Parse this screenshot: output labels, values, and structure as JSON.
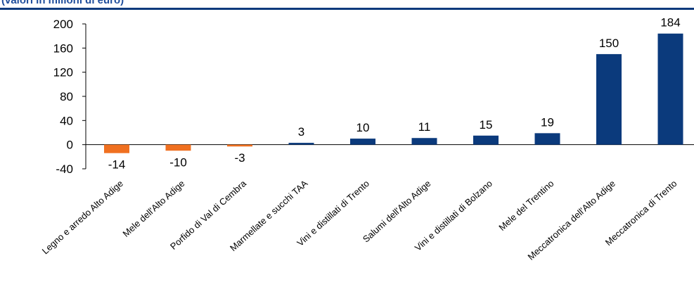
{
  "header": {
    "subtitle": "(valori in milioni di euro)"
  },
  "colors": {
    "positive": "#0b3a7c",
    "negative": "#f07020",
    "axis": "#000000"
  },
  "chart_data": {
    "type": "bar",
    "title": "",
    "subtitle": "(valori in milioni di euro)",
    "xlabel": "",
    "ylabel": "",
    "ylim": [
      -40,
      200
    ],
    "yticks": [
      -40,
      0,
      40,
      80,
      120,
      160,
      200
    ],
    "grid": false,
    "legend": "none",
    "categories": [
      "Legno e arredo Alto Adige",
      "Mele dell'Alto Adige",
      "Porfido di Val di Cembra",
      "Marmellate e succhi TAA",
      "Vini e distillati di Trento",
      "Salumi dell'Alto Adige",
      "Vini e distillati di Bolzano",
      "Mele del Trentino",
      "Meccatronica dell'Alto Adige",
      "Meccatronica di Trento"
    ],
    "values": [
      -14,
      -10,
      -3,
      3,
      10,
      11,
      15,
      19,
      150,
      184
    ],
    "value_labels": [
      "-14",
      "-10",
      "-3",
      "3",
      "10",
      "11",
      "15",
      "19",
      "150",
      "184"
    ]
  }
}
